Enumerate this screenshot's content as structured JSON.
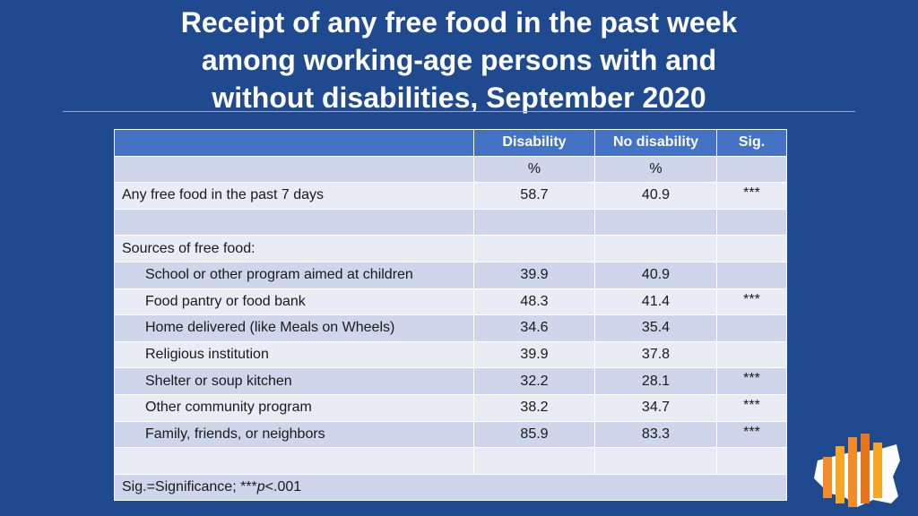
{
  "header": {
    "title_lines": [
      "Receipt of any free food in the past week",
      "among working-age persons with and",
      "without disabilities, September 2020"
    ]
  },
  "table": {
    "columns": [
      "Disability",
      "No disability",
      "Sig."
    ],
    "units": [
      "%",
      "%"
    ],
    "rows": [
      {
        "label": "Any free food in the past 7 days",
        "disability": 58.7,
        "no_disability": 40.9,
        "sig": "***"
      }
    ],
    "sources": {
      "heading": "Sources of free food:",
      "rows": [
        {
          "label": "School or other program aimed at children",
          "disability": 39.9,
          "no_disability": 40.9
        },
        {
          "label": "Food pantry or food bank",
          "disability": 48.3,
          "no_disability": 41.4,
          "sig": "***"
        },
        {
          "label": "Home delivered (like Meals on Wheels)",
          "disability": 34.6,
          "no_disability": 35.4
        },
        {
          "label": "Religious institution",
          "disability": 39.9,
          "no_disability": 37.8
        },
        {
          "label": "Shelter or soup kitchen",
          "disability": 32.2,
          "no_disability": 28.1,
          "sig": "***"
        },
        {
          "label": "Other community program",
          "disability": 38.2,
          "no_disability": 34.7,
          "sig": "***"
        },
        {
          "label": "Family, friends, or neighbors",
          "disability": 85.9,
          "no_disability": 83.3,
          "sig": "***"
        }
      ]
    },
    "footnote": {
      "before": "Sig.=Significance; ***",
      "italic": "p",
      "after": "<.001"
    }
  }
}
